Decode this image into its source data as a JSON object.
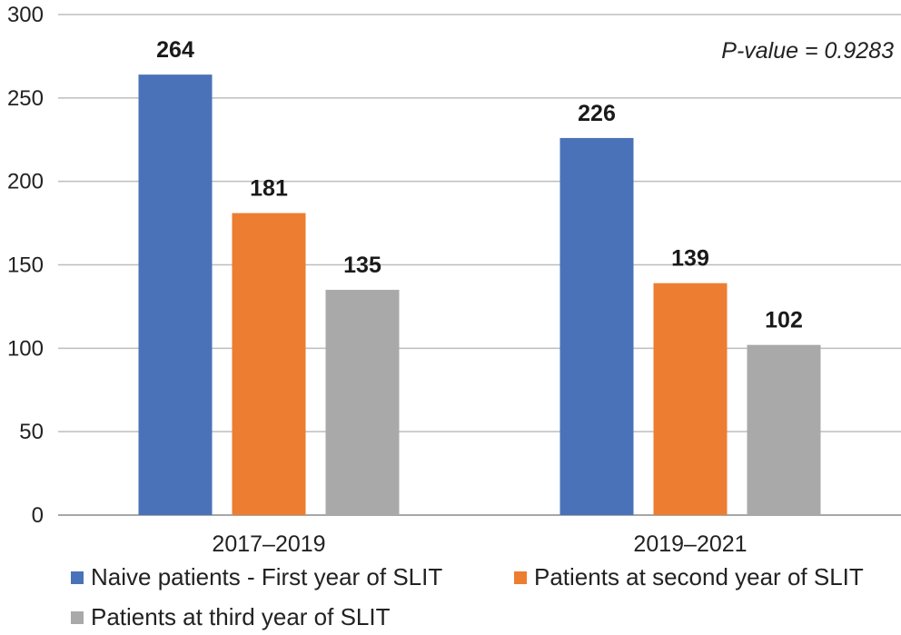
{
  "chart_data": {
    "type": "bar",
    "categories": [
      "2017–2019",
      "2019–2021"
    ],
    "series": [
      {
        "name": "Naive patients - First year of SLIT",
        "color": "#4A72B8",
        "values": [
          264,
          226
        ]
      },
      {
        "name": "Patients at second year of SLIT",
        "color": "#ED7D31",
        "values": [
          181,
          139
        ]
      },
      {
        "name": "Patients at third year of SLIT",
        "color": "#A9A9A9",
        "values": [
          135,
          102
        ]
      }
    ],
    "yticks": [
      "0",
      "50",
      "100",
      "150",
      "200",
      "250",
      "300"
    ],
    "ylim": [
      0,
      300
    ],
    "grid": true,
    "legend_position": "bottom",
    "annotation": "P-value = 0.9283"
  }
}
